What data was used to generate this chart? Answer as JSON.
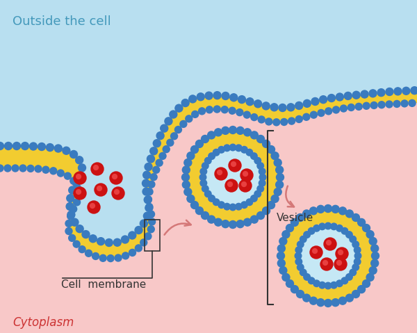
{
  "bg_outside_color": "#b8dff0",
  "bg_cytoplasm_color": "#f8c8c8",
  "membrane_yellow_color": "#f2cc30",
  "membrane_blue_color": "#3a7bbf",
  "vesicle_interior_color": "#c5e8f5",
  "red_particle_color": "#cc1111",
  "arrow_color": "#d47878",
  "text_outside": "Outside the cell",
  "text_cytoplasm": "Cytoplasm",
  "text_cell_membrane": "Cell  membrane",
  "text_vesicle": "Vesicle",
  "outside_text_color": "#4499bb",
  "cytoplasm_text_color": "#cc3333",
  "label_color": "#333333",
  "title_fontsize": 13,
  "label_fontsize": 11,
  "cytoplasm_fontsize": 12
}
